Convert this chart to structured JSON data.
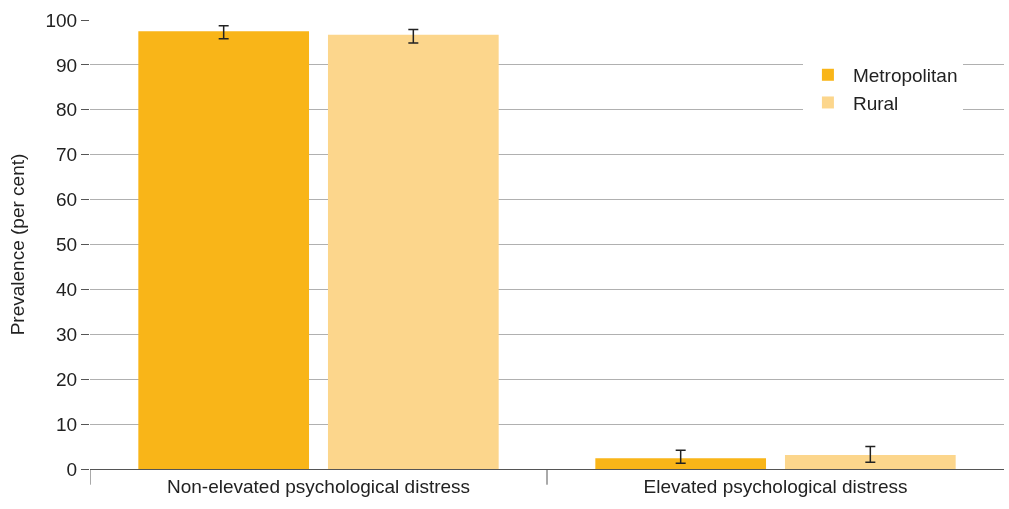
{
  "chart_data": {
    "type": "bar",
    "ylabel": "Prevalence (per cent)",
    "categories": [
      "Non-elevated psychological distress",
      "Elevated psychological distress"
    ],
    "series": [
      {
        "name": "Metropolitan",
        "color": "#f9b518",
        "values": [
          97.5,
          2.4
        ],
        "errors": [
          [
            95.8,
            98.7
          ],
          [
            1.3,
            4.2
          ]
        ]
      },
      {
        "name": "Rural",
        "color": "#fcd68c",
        "values": [
          96.7,
          3.1
        ],
        "errors": [
          [
            94.9,
            97.9
          ],
          [
            1.5,
            5.0
          ]
        ]
      }
    ],
    "ylim": [
      0,
      100
    ],
    "yticks": [
      0,
      10,
      20,
      30,
      40,
      50,
      60,
      70,
      80,
      90,
      100
    ],
    "grid": "y",
    "legend": "top right"
  }
}
